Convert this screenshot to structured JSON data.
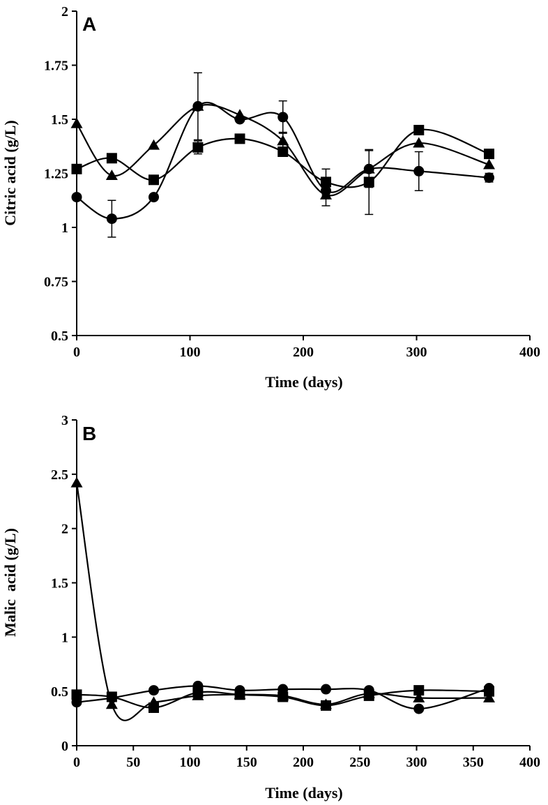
{
  "chart_data": [
    {
      "type": "line",
      "panel_label": "A",
      "xlabel": "Time (days)",
      "ylabel": "Citric acid (g/L)",
      "xlim": [
        0,
        400
      ],
      "ylim": [
        0.5,
        2
      ],
      "x_ticks": [
        0,
        100,
        200,
        300,
        400
      ],
      "y_ticks": [
        0.5,
        0.75,
        1,
        1.25,
        1.5,
        1.75,
        2
      ],
      "x_tick_labels": [
        "0",
        "100",
        "200",
        "300",
        "400"
      ],
      "y_tick_labels": [
        "0.5",
        "0.75",
        "1",
        "1.25",
        "1.5",
        "1.75",
        "2"
      ],
      "series": [
        {
          "marker": "square",
          "x": [
            0,
            31,
            68,
            107,
            144,
            182,
            220,
            258,
            302,
            364
          ],
          "y": [
            1.27,
            1.32,
            1.22,
            1.37,
            1.41,
            1.35,
            1.21,
            1.21,
            1.45,
            1.34
          ],
          "err": [
            0,
            0,
            0,
            0.03,
            0,
            0,
            0.06,
            0.15,
            0,
            0
          ]
        },
        {
          "marker": "triangle",
          "x": [
            0,
            31,
            68,
            107,
            144,
            182,
            220,
            258,
            302,
            364
          ],
          "y": [
            1.48,
            1.24,
            1.38,
            1.56,
            1.52,
            1.4,
            1.15,
            1.27,
            1.39,
            1.29
          ],
          "err": [
            0,
            0,
            0,
            0,
            0,
            0.04,
            0.05,
            0,
            0,
            0
          ]
        },
        {
          "marker": "circle",
          "x": [
            0,
            31,
            68,
            107,
            144,
            182,
            220,
            258,
            302,
            364
          ],
          "y": [
            1.14,
            1.04,
            1.14,
            1.56,
            1.5,
            1.51,
            1.17,
            1.27,
            1.26,
            1.23
          ],
          "err": [
            0,
            0.085,
            0,
            0.155,
            0,
            0.075,
            0,
            0.085,
            0.09,
            0.02
          ]
        }
      ]
    },
    {
      "type": "line",
      "panel_label": "B",
      "xlabel": "Time (days)",
      "ylabel": "Malic  acid (g/L)",
      "xlim": [
        0,
        400
      ],
      "ylim": [
        0,
        3
      ],
      "x_ticks": [
        0,
        50,
        100,
        150,
        200,
        250,
        300,
        350,
        400
      ],
      "y_ticks": [
        0,
        0.5,
        1,
        1.5,
        2,
        2.5,
        3
      ],
      "x_tick_labels": [
        "0",
        "50",
        "100",
        "150",
        "200",
        "250",
        "300",
        "350",
        "400"
      ],
      "y_tick_labels": [
        "0",
        "0.5",
        "1",
        "1.5",
        "2",
        "2.5",
        "3"
      ],
      "series": [
        {
          "marker": "square",
          "x": [
            0,
            31,
            68,
            107,
            144,
            182,
            220,
            258,
            302,
            364
          ],
          "y": [
            0.47,
            0.45,
            0.35,
            0.49,
            0.47,
            0.45,
            0.37,
            0.46,
            0.51,
            0.5
          ],
          "err": [
            0,
            0,
            0,
            0,
            0,
            0,
            0,
            0.03,
            0,
            0
          ]
        },
        {
          "marker": "triangle",
          "x": [
            0,
            31,
            68,
            107,
            144,
            182,
            220,
            258,
            302,
            364
          ],
          "y": [
            2.42,
            0.38,
            0.4,
            0.46,
            0.47,
            0.46,
            0.38,
            0.48,
            0.44,
            0.44
          ],
          "err": [
            0,
            0,
            0,
            0,
            0,
            0,
            0,
            0,
            0,
            0
          ]
        },
        {
          "marker": "circle",
          "x": [
            0,
            31,
            68,
            107,
            144,
            182,
            220,
            258,
            302,
            364
          ],
          "y": [
            0.4,
            0.44,
            0.51,
            0.55,
            0.51,
            0.52,
            0.52,
            0.51,
            0.34,
            0.53
          ],
          "err": [
            0,
            0,
            0,
            0,
            0,
            0,
            0,
            0,
            0,
            0
          ]
        }
      ]
    }
  ]
}
